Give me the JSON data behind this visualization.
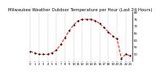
{
  "title": "Milwaukee Weather Outdoor Temperature per Hour (Last 24 Hours)",
  "hours": [
    0,
    1,
    2,
    3,
    4,
    5,
    6,
    7,
    8,
    9,
    10,
    11,
    12,
    13,
    14,
    15,
    16,
    17,
    18,
    19,
    20,
    21,
    22,
    23
  ],
  "temps": [
    52,
    51,
    50,
    50,
    50,
    51,
    53,
    57,
    62,
    67,
    71,
    74,
    75,
    75,
    75,
    74,
    72,
    69,
    66,
    63,
    61,
    47,
    50,
    49
  ],
  "line_color": "#ff0000",
  "marker_color": "#000000",
  "bg_color": "#ffffff",
  "grid_color": "#999999",
  "ylim_min": 45,
  "ylim_max": 80,
  "yticks": [
    50,
    55,
    60,
    65,
    70,
    75,
    80
  ],
  "title_fontsize": 3.8,
  "tick_fontsize": 2.8,
  "line_width": 0.7,
  "marker_size": 1.2
}
